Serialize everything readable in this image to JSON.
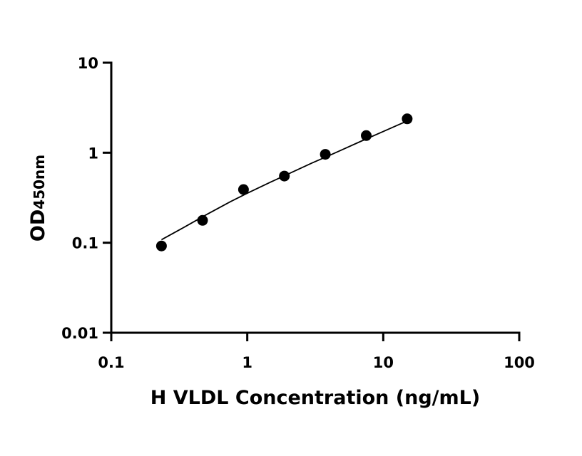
{
  "chart_data": {
    "type": "scatter",
    "xlabel": "H VLDL Concentration (ng/mL)",
    "ylabel_main": "OD",
    "ylabel_sub": "450nm",
    "xscale": "log",
    "yscale": "log",
    "xlim": [
      0.1,
      100
    ],
    "ylim": [
      0.01,
      10
    ],
    "xticks": [
      0.1,
      1,
      10,
      100
    ],
    "xtick_labels": [
      "0.1",
      "1",
      "10",
      "100"
    ],
    "yticks": [
      0.01,
      0.1,
      1,
      10
    ],
    "ytick_labels": [
      "0.01",
      "0.1",
      "1",
      "10"
    ],
    "grid": false,
    "legend": "none",
    "series": [
      {
        "x": [
          0.234,
          0.469,
          0.938,
          1.875,
          3.75,
          7.5,
          15
        ],
        "y": [
          0.092,
          0.177,
          0.39,
          0.55,
          0.96,
          1.55,
          2.38
        ]
      }
    ],
    "fit_curve": {
      "x": [
        0.234,
        0.35,
        0.5,
        0.75,
        1,
        1.5,
        2,
        3,
        4,
        5,
        7,
        10,
        13,
        15
      ],
      "y": [
        0.108,
        0.151,
        0.205,
        0.285,
        0.355,
        0.475,
        0.58,
        0.77,
        0.93,
        1.08,
        1.36,
        1.72,
        2.05,
        2.25
      ]
    },
    "colors": {
      "points": "#000000",
      "curve": "#000000",
      "axes": "#000000"
    }
  }
}
